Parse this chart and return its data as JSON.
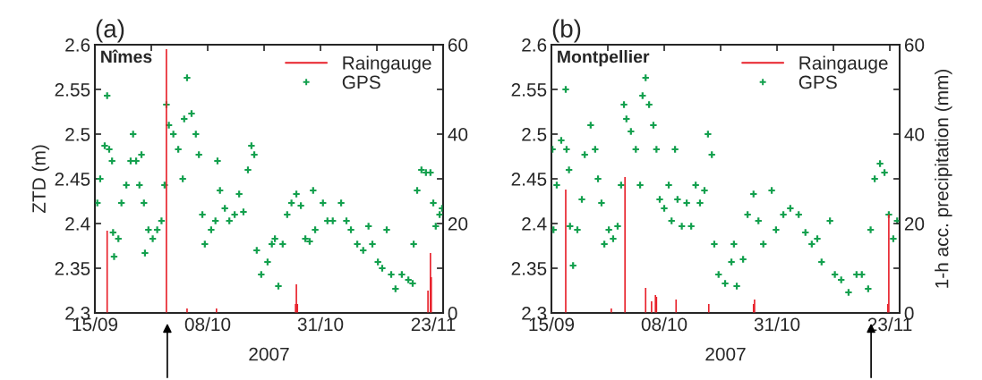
{
  "chart_data": [
    {
      "type": "scatter",
      "title": "(a)",
      "xlabel": "2007",
      "ylabel": "ZTD (m)",
      "annotations": [
        "Nîmes"
      ],
      "legend": "top right",
      "marker": "cross",
      "grid": false,
      "xlim": [
        "2007-09-15",
        "2007-11-25"
      ],
      "xticks": [
        {
          "value": "2007-09-15",
          "label": "15/09"
        },
        {
          "value": "2007-09-26T12:00",
          "label": null
        },
        {
          "value": "2007-10-08",
          "label": "08/10"
        },
        {
          "value": "2007-10-19T12:00",
          "label": null
        },
        {
          "value": "2007-10-31",
          "label": "31/10"
        },
        {
          "value": "2007-11-11T12:00",
          "label": null
        },
        {
          "value": "2007-11-23",
          "label": "23/11"
        }
      ],
      "ylim": [
        2.3,
        2.6
      ],
      "yticks": [
        2.3,
        2.35,
        2.4,
        2.45,
        2.5,
        2.55,
        2.6
      ],
      "y2lim": [
        0,
        60
      ],
      "y2ticks": [
        0,
        {
          "value": 10,
          "label": null
        },
        20,
        {
          "value": 30,
          "label": null
        },
        40,
        {
          "value": 50,
          "label": null
        },
        60
      ],
      "series": [
        {
          "name": "Raingauge",
          "type": "bar",
          "axis": "y2",
          "color": "#e8202a",
          "x": [
            "2007-09-17T12:00",
            "2007-09-29T14:00",
            "2007-10-03T19:00",
            "2007-10-09T19:00",
            "2007-10-25T22:00",
            "2007-10-26T02:00",
            "2007-10-26T07:00",
            "2007-11-21T22:00",
            "2007-11-22T10:00",
            "2007-11-22T14:00"
          ],
          "values": [
            18.4,
            59,
            1,
            1,
            2,
            6.4,
            2,
            5,
            13.4,
            8
          ]
        },
        {
          "name": "GPS",
          "color": "#13a04e",
          "x": [
            "2007-09-15T12:00",
            "2007-09-16T02:00",
            "2007-09-17T00:00",
            "2007-09-17T12:00",
            "2007-09-17T22:00",
            "2007-09-18T12:00",
            "2007-09-18T17:00",
            "2007-09-18T22:00",
            "2007-09-19T19:00",
            "2007-09-20T10:00",
            "2007-09-21T10:00",
            "2007-09-22T07:00",
            "2007-09-22T19:00",
            "2007-09-23T10:00",
            "2007-09-24T02:00",
            "2007-09-24T12:00",
            "2007-09-25T00:00",
            "2007-09-25T05:00",
            "2007-09-25T22:00",
            "2007-09-26T19:00",
            "2007-09-27T17:00",
            "2007-09-28T14:00",
            "2007-09-29T05:00",
            "2007-09-29T14:00",
            "2007-09-30T02:00",
            "2007-10-01T00:00",
            "2007-10-02T00:00",
            "2007-10-02T22:00",
            "2007-10-03T05:00",
            "2007-10-03T19:00",
            "2007-10-04T17:00",
            "2007-10-05T14:00",
            "2007-10-06T05:00",
            "2007-10-06T22:00",
            "2007-10-07T10:00",
            "2007-10-08T17:00",
            "2007-10-09T14:00",
            "2007-10-10T00:00",
            "2007-10-10T12:00",
            "2007-10-11T12:00",
            "2007-10-12T10:00",
            "2007-10-13T12:00",
            "2007-10-14T10:00",
            "2007-10-15T07:00",
            "2007-10-16T05:00",
            "2007-10-16T22:00",
            "2007-10-17T12:00",
            "2007-10-18T00:00",
            "2007-10-18T22:00",
            "2007-10-20T05:00",
            "2007-10-21T02:00",
            "2007-10-21T17:00",
            "2007-10-22T10:00",
            "2007-10-23T07:00",
            "2007-10-24T05:00",
            "2007-10-25T02:00",
            "2007-10-26T02:00",
            "2007-10-27T00:00",
            "2007-10-27T22:00",
            "2007-10-28T19:00",
            "2007-10-29T12:00",
            "2007-10-29T22:00",
            "2007-10-31T12:00",
            "2007-11-01T10:00",
            "2007-11-02T12:00",
            "2007-11-04T05:00",
            "2007-11-05T07:00",
            "2007-11-06T05:00",
            "2007-11-07T12:00",
            "2007-11-08T17:00",
            "2007-11-09T19:00",
            "2007-11-10T14:00",
            "2007-11-11T17:00",
            "2007-11-12T14:00",
            "2007-11-13T12:00",
            "2007-11-14T10:00",
            "2007-11-15T07:00",
            "2007-11-16T14:00",
            "2007-11-17T22:00",
            "2007-11-18T19:00",
            "2007-11-19T00:00",
            "2007-11-19T17:00",
            "2007-11-20T14:00",
            "2007-11-21T12:00",
            "2007-11-22T10:00",
            "2007-11-23T00:00",
            "2007-11-23T12:00",
            "2007-11-24T07:00",
            "2007-11-24T19:00"
          ],
          "values": [
            2.423,
            2.45,
            2.487,
            2.543,
            2.483,
            2.47,
            2.39,
            2.363,
            2.383,
            2.423,
            2.443,
            2.47,
            2.5,
            2.47,
            2.443,
            2.477,
            2.423,
            2.367,
            2.393,
            2.383,
            2.393,
            2.403,
            2.443,
            2.533,
            2.51,
            2.5,
            2.483,
            2.45,
            2.517,
            2.563,
            2.523,
            2.5,
            2.477,
            2.41,
            2.377,
            2.393,
            2.403,
            2.47,
            2.437,
            2.417,
            2.403,
            2.41,
            2.433,
            2.413,
            2.46,
            2.487,
            2.477,
            2.37,
            2.343,
            2.357,
            2.377,
            2.383,
            2.33,
            2.377,
            2.41,
            2.423,
            2.433,
            2.42,
            2.383,
            2.38,
            2.437,
            2.393,
            2.423,
            2.403,
            2.403,
            2.423,
            2.403,
            2.393,
            2.377,
            2.37,
            2.397,
            2.377,
            2.357,
            2.35,
            2.393,
            2.343,
            2.327,
            2.343,
            2.337,
            2.333,
            2.377,
            2.437,
            2.46,
            2.457,
            2.457,
            2.423,
            2.397,
            2.41,
            2.417
          ]
        }
      ]
    },
    {
      "type": "scatter",
      "title": "(b)",
      "xlabel": "2007",
      "y2label": "1-h acc. precipitation (mm)",
      "annotations": [
        "Montpellier"
      ],
      "legend": "top right",
      "marker": "cross",
      "grid": false,
      "xlim": [
        "2007-09-15",
        "2007-11-25"
      ],
      "xticks": [
        {
          "value": "2007-09-15",
          "label": "15/09"
        },
        {
          "value": "2007-09-26T12:00",
          "label": null
        },
        {
          "value": "2007-10-08",
          "label": "08/10"
        },
        {
          "value": "2007-10-19T12:00",
          "label": null
        },
        {
          "value": "2007-10-31",
          "label": "31/10"
        },
        {
          "value": "2007-11-11T12:00",
          "label": null
        },
        {
          "value": "2007-11-23",
          "label": "23/11"
        }
      ],
      "ylim": [
        2.3,
        2.6
      ],
      "yticks": [
        2.3,
        2.35,
        2.4,
        2.45,
        2.5,
        2.55,
        2.6
      ],
      "y2lim": [
        0,
        60
      ],
      "y2ticks": [
        0,
        {
          "value": 10,
          "label": null
        },
        20,
        {
          "value": 30,
          "label": null
        },
        40,
        {
          "value": 50,
          "label": null
        },
        60
      ],
      "series": [
        {
          "name": "Raingauge",
          "type": "bar",
          "axis": "y2",
          "color": "#e8202a",
          "x": [
            "2007-09-17T22:00",
            "2007-09-27T05:00",
            "2007-09-30T00:00",
            "2007-10-04T05:00",
            "2007-10-05T10:00",
            "2007-10-06T05:00",
            "2007-10-06T10:00",
            "2007-10-10T10:00",
            "2007-10-17T02:00",
            "2007-10-26T05:00",
            "2007-10-26T10:00",
            "2007-11-22T14:00",
            "2007-11-22T19:00"
          ],
          "values": [
            27.6,
            1,
            30.4,
            5.6,
            2.6,
            4,
            3.6,
            3,
            2,
            2,
            3,
            2,
            22
          ]
        },
        {
          "name": "GPS",
          "color": "#13a04e",
          "x": [
            "2007-09-15T05:00",
            "2007-09-15T10:00",
            "2007-09-16T02:00",
            "2007-09-17T00:00",
            "2007-09-17T22:00",
            "2007-09-18T02:00",
            "2007-09-18T14:00",
            "2007-09-18T19:00",
            "2007-09-19T10:00",
            "2007-09-20T07:00",
            "2007-09-21T05:00",
            "2007-09-21T19:00",
            "2007-09-23T00:00",
            "2007-09-23T22:00",
            "2007-09-24T12:00",
            "2007-09-25T05:00",
            "2007-09-25T19:00",
            "2007-09-26T17:00",
            "2007-09-27T14:00",
            "2007-09-28T12:00",
            "2007-09-29T05:00",
            "2007-09-29T19:00",
            "2007-09-30T07:00",
            "2007-10-01T05:00",
            "2007-10-02T05:00",
            "2007-10-03T02:00",
            "2007-10-03T14:00",
            "2007-10-04T05:00",
            "2007-10-04T22:00",
            "2007-10-05T19:00",
            "2007-10-06T10:00",
            "2007-10-07T02:00",
            "2007-10-08T00:00",
            "2007-10-08T22:00",
            "2007-10-09T12:00",
            "2007-10-10T05:00",
            "2007-10-10T17:00",
            "2007-10-11T14:00",
            "2007-10-12T14:00",
            "2007-10-13T12:00",
            "2007-10-14T10:00",
            "2007-10-15T07:00",
            "2007-10-16T05:00",
            "2007-10-16T22:00",
            "2007-10-17T17:00",
            "2007-10-18T05:00",
            "2007-10-19T02:00",
            "2007-10-20T10:00",
            "2007-10-21T17:00",
            "2007-10-22T05:00",
            "2007-10-22T19:00",
            "2007-10-24T02:00",
            "2007-10-25T00:00",
            "2007-10-26T05:00",
            "2007-10-27T05:00",
            "2007-10-28T05:00",
            "2007-10-29T22:00",
            "2007-10-30T19:00",
            "2007-11-01T07:00",
            "2007-11-02T17:00",
            "2007-11-04T10:00",
            "2007-11-05T19:00",
            "2007-11-07T02:00",
            "2007-11-08T05:00",
            "2007-11-09T02:00",
            "2007-11-10T19:00",
            "2007-11-11T19:00",
            "2007-11-13T02:00",
            "2007-11-14T14:00",
            "2007-11-16T05:00",
            "2007-11-17T07:00",
            "2007-11-18T14:00",
            "2007-11-19T02:00",
            "2007-11-19T22:00",
            "2007-11-21T00:00",
            "2007-11-21T22:00",
            "2007-11-22T19:00",
            "2007-11-23T17:00",
            "2007-11-24T12:00"
          ],
          "values": [
            2.483,
            2.393,
            2.443,
            2.493,
            2.55,
            2.483,
            2.46,
            2.397,
            2.353,
            2.393,
            2.427,
            2.477,
            2.51,
            2.483,
            2.45,
            2.423,
            2.377,
            2.393,
            2.383,
            2.397,
            2.443,
            2.533,
            2.517,
            2.503,
            2.483,
            2.443,
            2.543,
            2.563,
            2.533,
            2.51,
            2.483,
            2.427,
            2.417,
            2.443,
            2.403,
            2.483,
            2.427,
            2.397,
            2.423,
            2.397,
            2.443,
            2.423,
            2.437,
            2.5,
            2.477,
            2.377,
            2.343,
            2.333,
            2.357,
            2.377,
            2.33,
            2.36,
            2.41,
            2.433,
            2.403,
            2.377,
            2.437,
            2.393,
            2.41,
            2.417,
            2.41,
            2.39,
            2.377,
            2.383,
            2.357,
            2.403,
            2.343,
            2.337,
            2.323,
            2.343,
            2.343,
            2.327,
            2.393,
            2.45,
            2.467,
            2.457,
            2.41,
            2.383,
            2.403
          ]
        }
      ]
    }
  ]
}
